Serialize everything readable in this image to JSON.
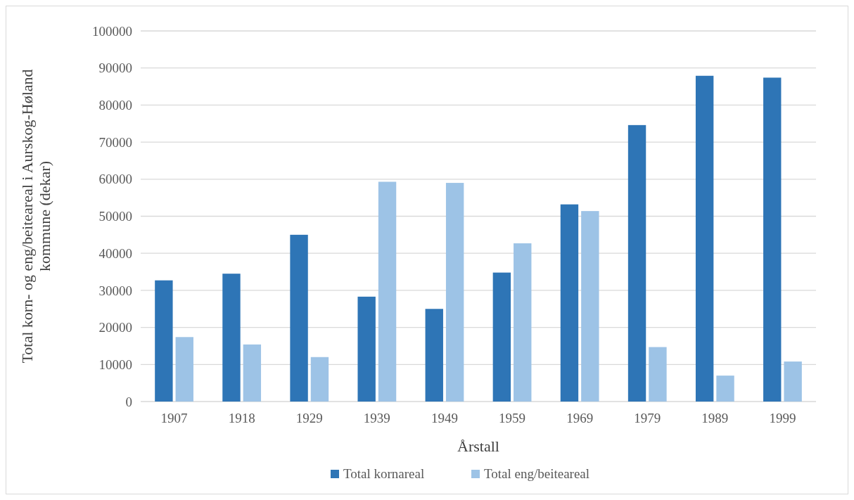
{
  "chart_data": {
    "type": "bar",
    "xlabel": "Årstall",
    "ylabel": "Total korn- og eng/beiteareal i Aurskog-Høland kommune (dekar)",
    "categories": [
      "1907",
      "1918",
      "1929",
      "1939",
      "1949",
      "1959",
      "1969",
      "1979",
      "1989",
      "1999"
    ],
    "series": [
      {
        "name": "Total kornareal",
        "color": "#2e75b6",
        "values": [
          32700,
          34500,
          45000,
          28300,
          25000,
          34800,
          53200,
          74600,
          87900,
          87400
        ]
      },
      {
        "name": "Total eng/beiteareal",
        "color": "#9dc3e6",
        "values": [
          17400,
          15400,
          12000,
          59300,
          59000,
          42700,
          51400,
          14700,
          7000,
          10800
        ]
      }
    ],
    "ylim": [
      0,
      100000
    ],
    "yticks": [
      0,
      10000,
      20000,
      30000,
      40000,
      50000,
      60000,
      70000,
      80000,
      90000,
      100000
    ],
    "grid": "y",
    "legend": "bottom"
  }
}
